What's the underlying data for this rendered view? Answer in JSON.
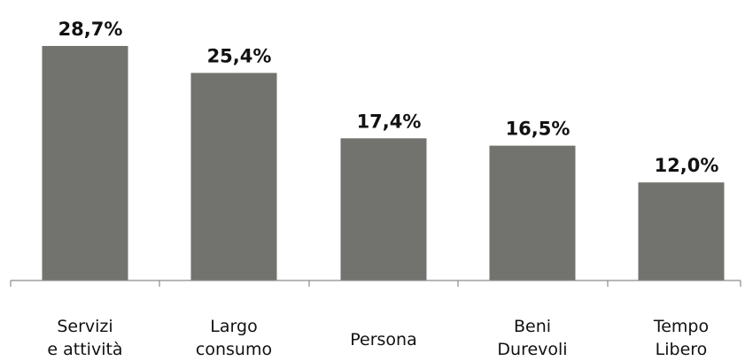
{
  "chart_data": {
    "type": "bar",
    "categories": [
      [
        "Servizi",
        "e attività"
      ],
      [
        "Largo",
        "consumo"
      ],
      [
        "Persona"
      ],
      [
        "Beni",
        "Durevoli"
      ],
      [
        "Tempo",
        "Libero"
      ]
    ],
    "values": [
      28.7,
      25.4,
      17.4,
      16.5,
      12.0
    ],
    "data_labels": [
      "28,7%",
      "25,4%",
      "17,4%",
      "16,5%",
      "12,0%"
    ],
    "ylim": [
      0,
      30
    ],
    "bar_color": "#72726e",
    "grid": false,
    "legend": "none"
  }
}
